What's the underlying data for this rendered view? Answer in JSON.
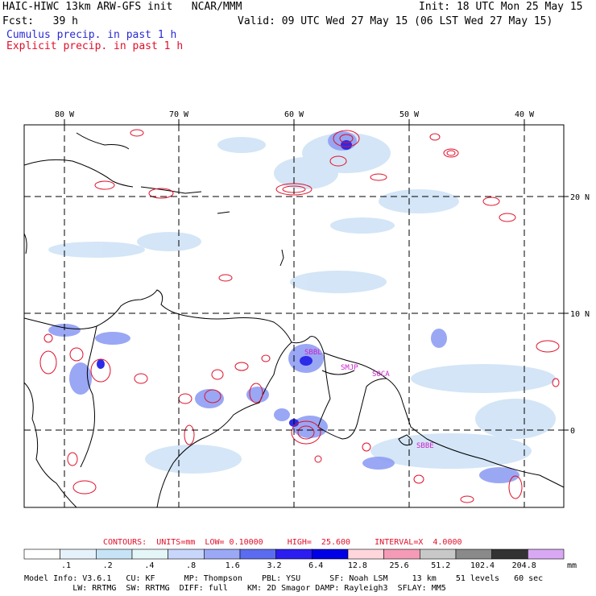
{
  "header": {
    "title": "HAIC-HIWC 13km ARW-GFS init   NCAR/MMM",
    "init": "Init: 18 UTC Mon 25 May 15",
    "fcst_label": "Fcst:   39 h",
    "valid": "Valid: 09 UTC Wed 27 May 15 (06 LST Wed 27 May 15)",
    "legend_cumulus": "Cumulus precip. in past 1 h",
    "legend_explicit": "Explicit precip. in past 1 h"
  },
  "map": {
    "lon_labels": [
      "80 W",
      "70 W",
      "60 W",
      "50 W",
      "40 W"
    ],
    "lat_labels": [
      "20 N",
      "10 N",
      "0"
    ],
    "stations": [
      "SBBL",
      "SMJP",
      "SOCA",
      "SBBE"
    ]
  },
  "contours_line": {
    "label": "CONTOURS:  UNITS=mm  LOW= 0.10000     HIGH=  25.600     INTERVAL=X  4.0000"
  },
  "colorbar": {
    "labels": [
      ".1",
      ".2",
      ".4",
      ".8",
      "1.6",
      "3.2",
      "6.4",
      "12.8",
      "25.6",
      "51.2",
      "102.4",
      "204.8"
    ],
    "colors": [
      "#ffffff",
      "#e6f2fb",
      "#c7e4f6",
      "#e4f6f7",
      "#c9d6fb",
      "#9aa8f5",
      "#5c6cf0",
      "#2b1df0",
      "#0000e6",
      "#ffd6dc",
      "#f59bb7",
      "#c8c8c8",
      "#8a8a8a",
      "#333333",
      "#d9a8f5"
    ],
    "unit": "mm"
  },
  "footer": {
    "line1": "Model Info: V3.6.1   CU: KF      MP: Thompson    PBL: YSU      SF: Noah LSM     13 km    51 levels   60 sec",
    "line2": "          LW: RRTMG  SW: RRTMG  DIFF: full    KM: 2D Smagor DAMP: Rayleigh3  SFLAY: MM5"
  }
}
